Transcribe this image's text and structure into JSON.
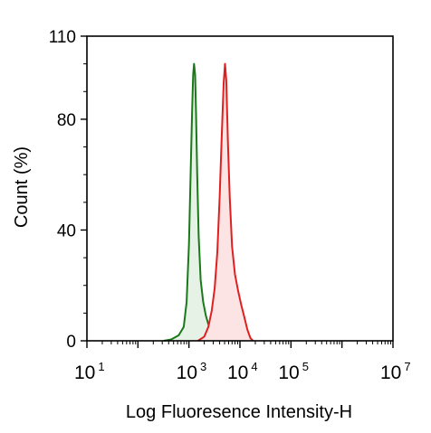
{
  "chart_data": {
    "type": "area",
    "xlabel": "Log Fluoresence Intensity-H",
    "ylabel": "Count  (%)",
    "x_scale": "log",
    "xlim": [
      10,
      10000000
    ],
    "ylim": [
      0,
      110
    ],
    "x_ticks": [
      {
        "base": "10",
        "exp": "1",
        "value": 10
      },
      {
        "base": "10",
        "exp": "3",
        "value": 1000
      },
      {
        "base": "10",
        "exp": "4",
        "value": 10000
      },
      {
        "base": "10",
        "exp": "5",
        "value": 100000
      },
      {
        "base": "10",
        "exp": "7",
        "value": 10000000
      }
    ],
    "y_ticks": [
      "0",
      "40",
      "80",
      "110"
    ],
    "y_tick_values": [
      0,
      40,
      80,
      110
    ],
    "grid": false,
    "series": [
      {
        "color": "#1a7a1a",
        "fill": "#e6f2e6",
        "x": [
          320,
          450,
          630,
          790,
          900,
          1000,
          1080,
          1150,
          1210,
          1260,
          1320,
          1380,
          1450,
          1550,
          1700,
          1900,
          2150,
          2400,
          2700,
          3100,
          3500,
          3900
        ],
        "y": [
          0,
          0.5,
          2,
          5,
          14,
          35,
          60,
          82,
          96,
          100,
          96,
          82,
          60,
          38,
          22,
          14,
          9,
          6,
          3.5,
          1.5,
          0.5,
          0
        ]
      },
      {
        "color": "#e02020",
        "fill": "#fce4e4",
        "x": [
          1500,
          2000,
          2400,
          2800,
          3200,
          3600,
          4000,
          4400,
          4800,
          5100,
          5400,
          5800,
          6300,
          7000,
          8000,
          9200,
          10600,
          12000,
          14000,
          16000,
          18000
        ],
        "y": [
          0,
          1.5,
          5,
          11,
          19,
          32,
          52,
          74,
          93,
          100,
          94,
          72,
          52,
          34,
          24,
          18,
          13,
          9,
          4,
          1,
          0
        ]
      }
    ]
  }
}
